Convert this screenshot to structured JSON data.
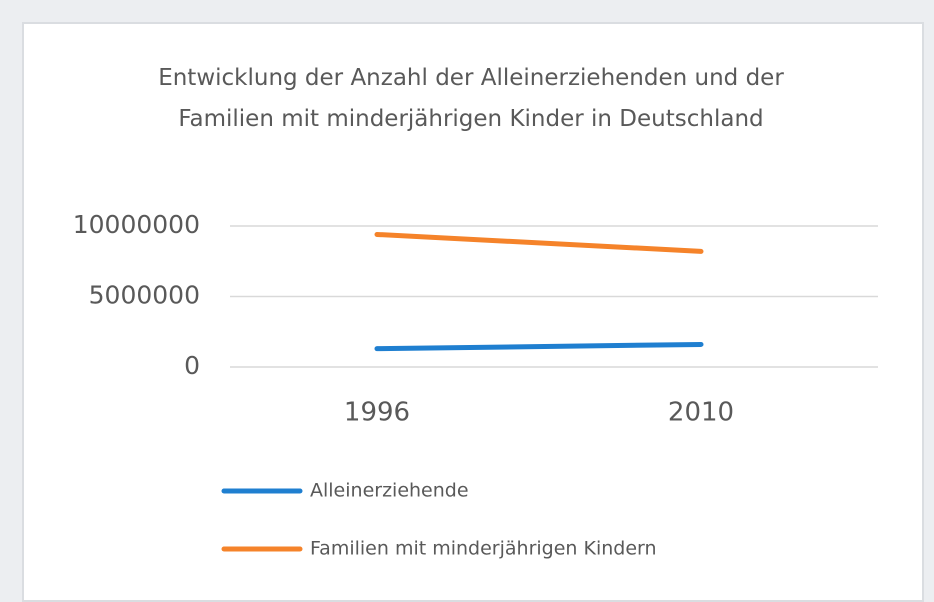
{
  "chart_data": {
    "type": "line",
    "title": "Entwicklung der Anzahl der Alleinerziehenden und der Familien mit minderjährigen Kinder in Deutschland",
    "categories": [
      "1996",
      "2010"
    ],
    "series": [
      {
        "name": "Alleinerziehende",
        "color": "#1f7fd0",
        "values": [
          1300000,
          1600000
        ]
      },
      {
        "name": "Familien mit minderjährigen Kindern",
        "color": "#f5832a",
        "values": [
          9400000,
          8200000
        ]
      }
    ],
    "ylim": [
      0,
      10000000
    ],
    "yticks": [
      0,
      5000000,
      10000000
    ],
    "grid": true,
    "legend": "bottom"
  }
}
